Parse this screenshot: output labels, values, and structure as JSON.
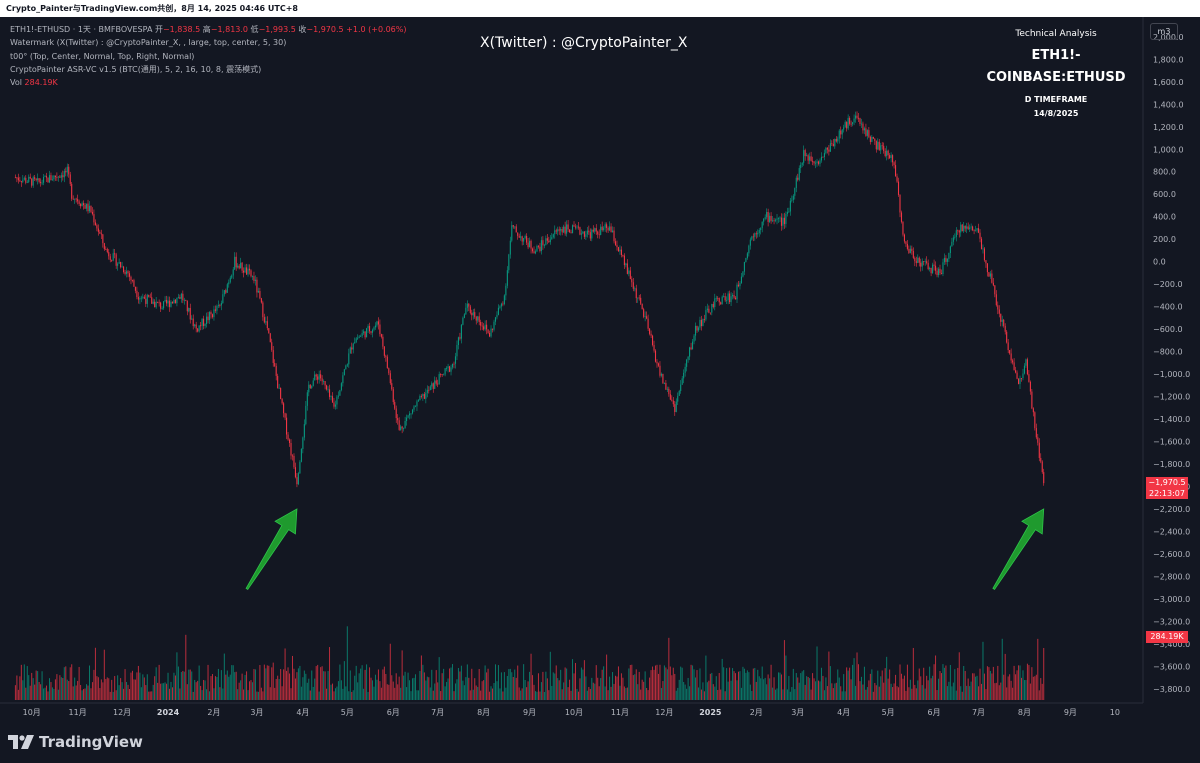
{
  "header": {
    "caption": "Crypto_Painter与TradingView.com共创，8月 14, 2025 04:46 UTC+8"
  },
  "legend": {
    "symbol_line_prefix": "ETH1!-ETHUSD · 1天 · BMFBOVESPA  开",
    "open": "−1,838.5",
    "high_label": " 高",
    "high": "−1,813.0",
    "low_label": " 低",
    "low": "−1,993.5",
    "close_label": " 收",
    "close": "−1,970.5",
    "change": " +1.0 (+0.06%)",
    "watermark_line": "Watermark (X(Twitter) : @CryptoPainter_X, , large, top, center, 5, 30)",
    "style_line": "t00° (Top, Center, Normal, Top, Right, Normal)",
    "indicator_line": "CryptoPainter ASR-VC v1.5 (BTC(通用), 5, 2, 16, 10, 8, 震荡模式)",
    "vol_label": "Vol ",
    "vol_value": "284.19K"
  },
  "watermark": "X(Twitter) : @CryptoPainter_X",
  "analysis_box": {
    "line1": "Technical Analysis",
    "line2": "ETH1!-COINBASE:ETHUSD",
    "line3": "D TIMEFRAME",
    "line4": "14/8/2025"
  },
  "toolbar": {
    "scale_button": "m3"
  },
  "price_tag": {
    "price": "−1,970.5",
    "countdown": "22:13:07"
  },
  "volume_tag": "284.19K",
  "brand": "TradingView",
  "colors": {
    "up": "#089981",
    "down": "#f23645",
    "background": "#131722",
    "text": "#b2b5be",
    "arrow": "#1f9a2e"
  },
  "chart_data": {
    "type": "candlestick",
    "y_axis": {
      "ticks": [
        2000,
        1800,
        1600,
        1400,
        1200,
        1000,
        800,
        600,
        400,
        200,
        0,
        -200,
        -400,
        -600,
        -800,
        -1000,
        -1200,
        -1400,
        -1600,
        -1800,
        -2000,
        -2200,
        -2400,
        -2600,
        -2800,
        -3000,
        -3200,
        -3400,
        -3600,
        -3800
      ],
      "tick_labels": [
        "2,000.0",
        "1,800.0",
        "1,600.0",
        "1,400.0",
        "1,200.0",
        "1,000.0",
        "800.0",
        "600.0",
        "400.0",
        "200.0",
        "0.0",
        "−200.0",
        "−400.0",
        "−600.0",
        "−800.0",
        "−1,000.0",
        "−1,200.0",
        "−1,400.0",
        "−1,600.0",
        "−1,800.0",
        "−2,000.0",
        "−2,200.0",
        "−2,400.0",
        "−2,600.0",
        "−2,800.0",
        "−3,000.0",
        "−3,200.0",
        "−3,400.0",
        "−3,600.0",
        "−3,800.0"
      ],
      "range": [
        -3900,
        2150
      ]
    },
    "x_axis": {
      "labels": [
        "10月",
        "11月",
        "12月",
        "2024",
        "2月",
        "3月",
        "4月",
        "5月",
        "6月",
        "7月",
        "8月",
        "9月",
        "10月",
        "11月",
        "12月",
        "2025",
        "2月",
        "3月",
        "4月",
        "5月",
        "6月",
        "7月",
        "8月",
        "9月",
        "10"
      ],
      "bold": [
        "2024",
        "2025"
      ]
    },
    "close_path": [
      [
        "2023-09-20",
        750
      ],
      [
        "2023-10-05",
        700
      ],
      [
        "2023-10-25",
        800
      ],
      [
        "2023-10-28",
        600
      ],
      [
        "2023-11-10",
        450
      ],
      [
        "2023-11-20",
        100
      ],
      [
        "2023-12-05",
        -100
      ],
      [
        "2023-12-12",
        -300
      ],
      [
        "2023-12-28",
        -400
      ],
      [
        "2024-01-10",
        -300
      ],
      [
        "2024-01-20",
        -600
      ],
      [
        "2024-02-05",
        -400
      ],
      [
        "2024-02-15",
        0
      ],
      [
        "2024-02-28",
        -150
      ],
      [
        "2024-03-08",
        -600
      ],
      [
        "2024-03-18",
        -1300
      ],
      [
        "2024-03-28",
        -1950
      ],
      [
        "2024-04-05",
        -1100
      ],
      [
        "2024-04-12",
        -1000
      ],
      [
        "2024-04-22",
        -1300
      ],
      [
        "2024-05-05",
        -700
      ],
      [
        "2024-05-22",
        -550
      ],
      [
        "2024-05-29",
        -1000
      ],
      [
        "2024-06-05",
        -1500
      ],
      [
        "2024-06-15",
        -1300
      ],
      [
        "2024-06-28",
        -1100
      ],
      [
        "2024-07-12",
        -900
      ],
      [
        "2024-07-20",
        -400
      ],
      [
        "2024-07-28",
        -500
      ],
      [
        "2024-08-05",
        -650
      ],
      [
        "2024-08-15",
        -300
      ],
      [
        "2024-08-20",
        300
      ],
      [
        "2024-09-05",
        100
      ],
      [
        "2024-09-22",
        300
      ],
      [
        "2024-10-12",
        250
      ],
      [
        "2024-10-25",
        300
      ],
      [
        "2024-11-08",
        -150
      ],
      [
        "2024-11-18",
        -500
      ],
      [
        "2024-11-28",
        -1000
      ],
      [
        "2024-12-08",
        -1300
      ],
      [
        "2024-12-22",
        -600
      ],
      [
        "2025-01-05",
        -350
      ],
      [
        "2025-01-18",
        -300
      ],
      [
        "2025-01-28",
        200
      ],
      [
        "2025-02-08",
        400
      ],
      [
        "2025-02-20",
        350
      ],
      [
        "2025-03-05",
        950
      ],
      [
        "2025-03-15",
        900
      ],
      [
        "2025-04-08",
        1300
      ],
      [
        "2025-04-22",
        1050
      ],
      [
        "2025-05-05",
        900
      ],
      [
        "2025-05-12",
        150
      ],
      [
        "2025-05-22",
        0
      ],
      [
        "2025-06-05",
        -100
      ],
      [
        "2025-06-18",
        300
      ],
      [
        "2025-06-30",
        300
      ],
      [
        "2025-07-08",
        -100
      ],
      [
        "2025-07-18",
        -600
      ],
      [
        "2025-07-28",
        -1100
      ],
      [
        "2025-08-02",
        -900
      ],
      [
        "2025-08-06",
        -1300
      ],
      [
        "2025-08-09",
        -1550
      ],
      [
        "2025-08-14",
        -1970.5
      ]
    ],
    "annotations": [
      {
        "type": "arrow",
        "target": "2024-03-28",
        "label": ""
      },
      {
        "type": "arrow",
        "target": "2025-08-14",
        "label": ""
      }
    ],
    "last_close": -1970.5,
    "last_volume": "284.19K"
  }
}
